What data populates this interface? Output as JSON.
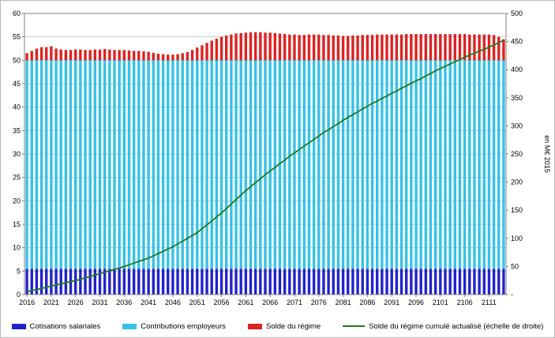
{
  "chart_data": {
    "type": "bar",
    "stacked": true,
    "title": "",
    "x_start": 2016,
    "x_end": 2114,
    "x_tick_labels": [
      "2016",
      "2021",
      "2026",
      "2031",
      "2036",
      "2041",
      "2046",
      "2051",
      "2056",
      "2061",
      "2066",
      "2071",
      "2076",
      "2081",
      "2086",
      "2091",
      "2096",
      "2101",
      "2106",
      "2111"
    ],
    "left_axis": {
      "min": 0,
      "max": 60,
      "step": 5
    },
    "right_axis": {
      "min": 0,
      "max": 500,
      "step": 50,
      "title": "en M€ 2015",
      "zero_label": "-"
    },
    "grid": "horizontal",
    "legend_position": "bottom",
    "series": [
      {
        "name": "Cotisations salariales",
        "type": "bar",
        "axis": "left",
        "color": "#2222CC",
        "constant": 5.5
      },
      {
        "name": "Contributions employeurs",
        "type": "bar",
        "axis": "left",
        "color": "#35C2E8",
        "constant": 44.5
      },
      {
        "name": "Solde du régime",
        "type": "bar",
        "axis": "left",
        "color": "#DD2222",
        "values": [
          1.5,
          2.0,
          2.5,
          2.8,
          2.8,
          3.0,
          2.5,
          2.3,
          2.2,
          2.2,
          2.3,
          2.3,
          2.2,
          2.2,
          2.3,
          2.3,
          2.4,
          2.3,
          2.2,
          2.2,
          2.2,
          2.1,
          2.0,
          2.0,
          1.9,
          1.8,
          1.6,
          1.4,
          1.3,
          1.2,
          1.2,
          1.3,
          1.5,
          1.8,
          2.2,
          2.7,
          3.2,
          3.7,
          4.2,
          4.6,
          5.0,
          5.3,
          5.5,
          5.7,
          5.8,
          5.9,
          6.0,
          6.0,
          6.0,
          5.9,
          5.9,
          5.8,
          5.7,
          5.6,
          5.5,
          5.5,
          5.4,
          5.4,
          5.5,
          5.5,
          5.5,
          5.4,
          5.4,
          5.3,
          5.3,
          5.2,
          5.2,
          5.3,
          5.3,
          5.4,
          5.4,
          5.4,
          5.5,
          5.5,
          5.5,
          5.5,
          5.5,
          5.5,
          5.6,
          5.6,
          5.6,
          5.6,
          5.6,
          5.6,
          5.6,
          5.6,
          5.6,
          5.6,
          5.6,
          5.6,
          5.6,
          5.5,
          5.5,
          5.5,
          5.5,
          5.5,
          5.4,
          5.0,
          4.5
        ]
      },
      {
        "name": "Solde du régime cumulé actualisé (échelle de droite)",
        "type": "line",
        "axis": "right",
        "color": "#1E7A1E",
        "values": [
          5,
          7,
          9,
          11,
          13,
          15,
          17,
          19,
          21,
          23,
          25,
          27,
          30,
          32,
          35,
          37,
          40,
          42,
          45,
          47,
          50,
          53,
          56,
          59,
          62,
          65,
          69,
          73,
          77,
          81,
          85,
          90,
          95,
          100,
          105,
          110,
          117,
          124,
          131,
          138,
          145,
          153,
          161,
          169,
          177,
          185,
          192,
          199,
          206,
          213,
          220,
          226,
          233,
          239,
          246,
          252,
          258,
          264,
          270,
          276,
          282,
          288,
          293,
          299,
          304,
          310,
          315,
          320,
          325,
          330,
          335,
          340,
          344,
          349,
          353,
          358,
          362,
          367,
          371,
          376,
          380,
          384,
          389,
          393,
          398,
          402,
          406,
          410,
          414,
          418,
          422,
          426,
          429,
          433,
          436,
          440,
          444,
          448,
          452
        ]
      }
    ]
  }
}
